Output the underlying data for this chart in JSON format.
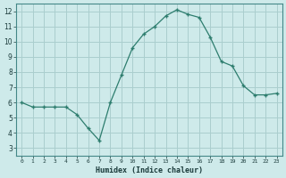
{
  "x": [
    0,
    1,
    2,
    3,
    4,
    5,
    6,
    7,
    8,
    9,
    10,
    11,
    12,
    13,
    14,
    15,
    16,
    17,
    18,
    19,
    20,
    21,
    22,
    23
  ],
  "y": [
    6.0,
    5.7,
    5.7,
    5.7,
    5.7,
    5.2,
    4.3,
    3.5,
    6.0,
    7.8,
    9.6,
    10.5,
    11.0,
    11.7,
    12.1,
    11.8,
    11.6,
    10.3,
    8.7,
    8.4,
    7.1,
    6.5,
    6.5,
    6.6
  ],
  "xlabel": "Humidex (Indice chaleur)",
  "xlim_min": -0.5,
  "xlim_max": 23.5,
  "ylim_min": 2.5,
  "ylim_max": 12.5,
  "xticks": [
    0,
    1,
    2,
    3,
    4,
    5,
    6,
    7,
    8,
    9,
    10,
    11,
    12,
    13,
    14,
    15,
    16,
    17,
    18,
    19,
    20,
    21,
    22,
    23
  ],
  "yticks": [
    3,
    4,
    5,
    6,
    7,
    8,
    9,
    10,
    11,
    12
  ],
  "line_color": "#2d7d6e",
  "bg_color": "#ceeaea",
  "grid_color": "#aacece"
}
